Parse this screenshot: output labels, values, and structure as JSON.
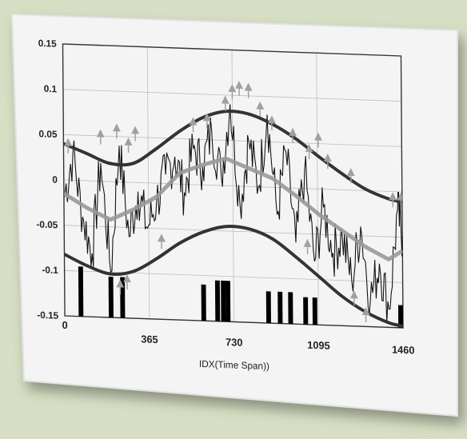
{
  "chart_data": {
    "type": "line",
    "title": "",
    "xlabel": "IDX(Time Span))",
    "ylabel": "",
    "xlim": [
      0,
      1460
    ],
    "ylim": [
      -0.15,
      0.15
    ],
    "xticks": [
      0,
      365,
      730,
      1095,
      1460
    ],
    "xtick_labels": [
      "0",
      "365",
      "730",
      "1095",
      "1460"
    ],
    "yticks": [
      0.15,
      0.1,
      0.05,
      0,
      -0.05,
      -0.1,
      -0.15
    ],
    "ytick_labels": [
      "0.15",
      "0.1",
      "0.05",
      "0",
      "-0.05",
      "-0.1",
      "-0.15"
    ],
    "grid": true,
    "colors": {
      "raw": "#111111",
      "smoothed": "#999999",
      "envelope": "#333333",
      "markers": "#a0a0a0",
      "events": "#000000",
      "background": "#d6dfc4",
      "card": "#f4f4f4"
    },
    "upper_envelope": {
      "x": [
        0,
        100,
        200,
        300,
        400,
        500,
        600,
        700,
        800,
        900,
        1000,
        1100,
        1200,
        1300,
        1400,
        1460
      ],
      "y": [
        0.04,
        0.03,
        0.02,
        0.021,
        0.038,
        0.058,
        0.074,
        0.082,
        0.08,
        0.07,
        0.055,
        0.036,
        0.018,
        0.002,
        -0.008,
        -0.011
      ]
    },
    "lower_envelope": {
      "x": [
        0,
        100,
        200,
        300,
        400,
        500,
        600,
        700,
        800,
        900,
        1000,
        1100,
        1200,
        1300,
        1400,
        1460
      ],
      "y": [
        -0.082,
        -0.094,
        -0.102,
        -0.098,
        -0.083,
        -0.065,
        -0.052,
        -0.045,
        -0.047,
        -0.057,
        -0.076,
        -0.097,
        -0.118,
        -0.134,
        -0.145,
        -0.148
      ]
    },
    "smoothed_trend": {
      "x": [
        0,
        100,
        200,
        300,
        400,
        500,
        600,
        700,
        800,
        900,
        1000,
        1100,
        1200,
        1300,
        1400,
        1460
      ],
      "y": [
        -0.015,
        -0.03,
        -0.042,
        -0.03,
        -0.015,
        0.012,
        0.022,
        0.03,
        0.02,
        0.01,
        -0.008,
        -0.028,
        -0.045,
        -0.062,
        -0.075,
        -0.065
      ]
    },
    "raw_series": {
      "x": [
        0,
        40,
        80,
        120,
        160,
        200,
        240,
        280,
        320,
        360,
        400,
        440,
        480,
        520,
        560,
        600,
        640,
        680,
        720,
        760,
        800,
        840,
        880,
        920,
        960,
        1000,
        1040,
        1080,
        1120,
        1160,
        1200,
        1240,
        1280,
        1320,
        1360,
        1400,
        1440,
        1460
      ],
      "y": [
        -0.02,
        0.03,
        -0.04,
        -0.08,
        0.02,
        -0.1,
        0.04,
        -0.06,
        -0.01,
        -0.05,
        -0.02,
        0.01,
        0.03,
        -0.01,
        0.04,
        0.02,
        0.06,
        0.01,
        0.09,
        -0.02,
        0.05,
        0.0,
        0.08,
        -0.03,
        0.04,
        -0.06,
        0.02,
        -0.08,
        -0.02,
        -0.07,
        -0.05,
        -0.1,
        -0.04,
        -0.12,
        -0.08,
        -0.13,
        -0.02,
        -0.05
      ]
    },
    "peak_markers": {
      "x": [
        20,
        160,
        230,
        280,
        310,
        560,
        620,
        700,
        730,
        760,
        800,
        850,
        900,
        990,
        1060,
        1100,
        1140,
        1240,
        1420,
        1455
      ],
      "y": [
        0.042,
        0.053,
        0.06,
        0.045,
        0.058,
        0.07,
        0.075,
        0.095,
        0.108,
        0.112,
        0.11,
        0.09,
        0.075,
        0.062,
        0.045,
        0.058,
        0.035,
        0.02,
        -0.005,
        -0.005
      ]
    },
    "trough_markers": {
      "x": [
        240,
        270,
        420,
        1050,
        1250,
        1300
      ],
      "y": [
        -0.112,
        -0.106,
        -0.06,
        -0.06,
        -0.115,
        -0.133
      ]
    },
    "event_bars": {
      "x": [
        70,
        200,
        250,
        600,
        660,
        685,
        705,
        880,
        930,
        975,
        1040,
        1080,
        1450
      ],
      "height": [
        0.055,
        0.045,
        0.045,
        0.04,
        0.045,
        0.045,
        0.045,
        0.035,
        0.035,
        0.035,
        0.03,
        0.03,
        0.025
      ]
    }
  }
}
